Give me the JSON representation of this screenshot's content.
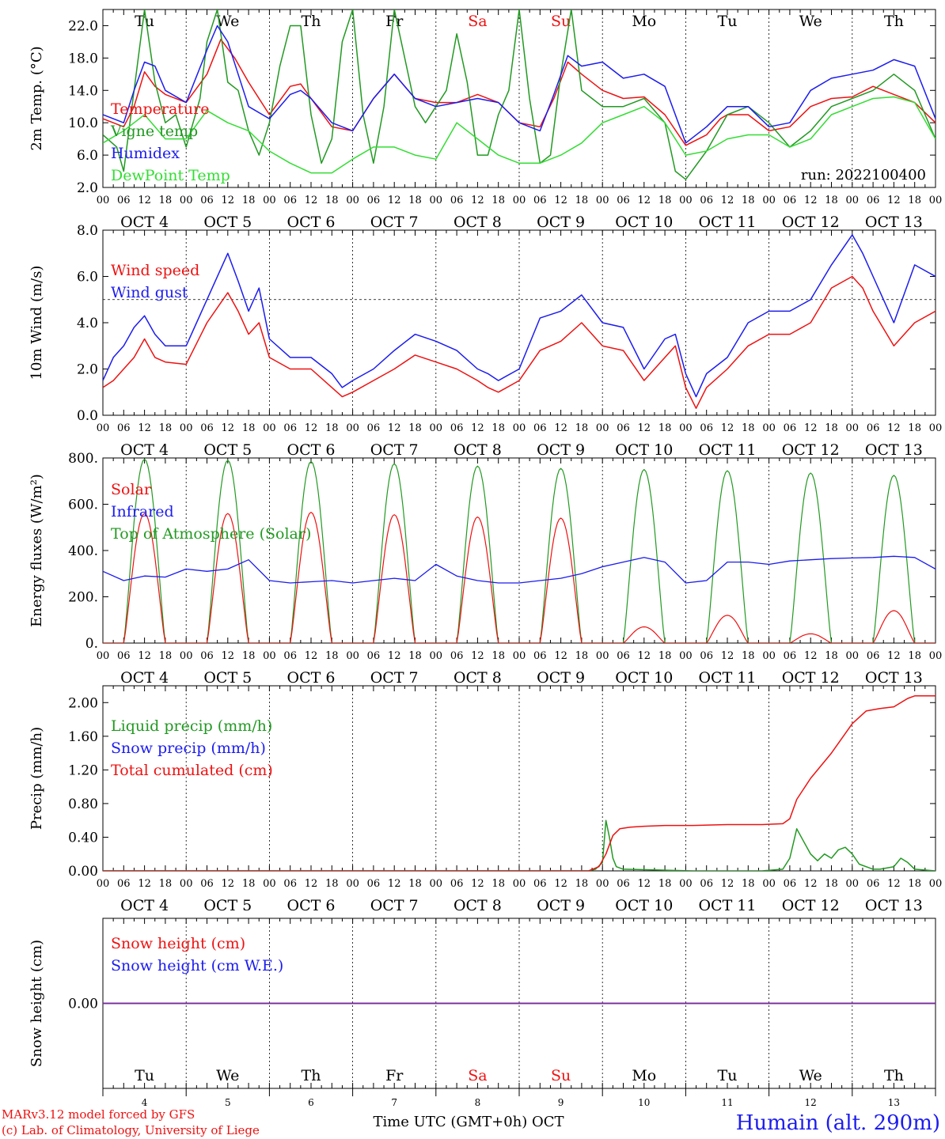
{
  "footer": {
    "credit_line1": "MARv3.12 model forced by GFS",
    "credit_line2": "(c) Lab. of Climatology, University of Liege",
    "xlabel": "Time UTC (GMT+0h) OCT",
    "station": "Humain (alt. 290m)"
  },
  "colors": {
    "red": "#ee1111",
    "green": "#229922",
    "blue": "#1c1cee",
    "lightgreen": "#33dd33",
    "purple": "#7a2a9a",
    "weekend": "#ee1111"
  },
  "hour_ticks": [
    "00",
    "06",
    "12",
    "18"
  ],
  "chart_data": [
    {
      "type": "line",
      "ylabel": "2m Temp. (°C)",
      "ylim": [
        2,
        24
      ],
      "yticks": [
        "2.0",
        "6.0",
        "10.0",
        "14.0",
        "18.0",
        "22.0"
      ],
      "ytick_values": [
        2,
        6,
        10,
        14,
        18,
        22
      ],
      "annotation": "run: 2022100400",
      "day_names": [
        "Tu",
        "We",
        "Th",
        "Fr",
        "Sa",
        "Su",
        "Mo",
        "Tu",
        "We",
        "Th"
      ],
      "date_labels": [
        "OCT  4",
        "OCT  5",
        "OCT  6",
        "OCT  7",
        "OCT  8",
        "OCT  9",
        "OCT 10",
        "OCT 11",
        "OCT 12",
        "OCT 13"
      ],
      "x_unit": "hours since 2022-10-04 00 UTC",
      "series": [
        {
          "name": "Temperature",
          "color": "#ee1111",
          "x": [
            0,
            6,
            9,
            12,
            15,
            18,
            24,
            30,
            34,
            38,
            42,
            48,
            54,
            57,
            60,
            66,
            72,
            78,
            84,
            90,
            96,
            102,
            108,
            114,
            120,
            126,
            130,
            134,
            138,
            144,
            150,
            156,
            162,
            168,
            174,
            178,
            180,
            186,
            192,
            198,
            204,
            210,
            216,
            222,
            228,
            234,
            240
          ],
          "y": [
            10.5,
            9.5,
            12,
            16.3,
            14.5,
            13.5,
            12.5,
            16,
            20.3,
            18,
            15,
            11,
            14.5,
            14.8,
            13,
            9.5,
            9,
            13,
            16,
            13,
            12.5,
            12.5,
            13.5,
            12.5,
            10,
            9.5,
            13,
            17.5,
            16,
            14,
            13,
            13.2,
            11,
            7.2,
            8.5,
            10.5,
            11,
            11,
            9,
            9.5,
            12,
            13,
            13.2,
            14.5,
            13.5,
            12.5,
            10
          ]
        },
        {
          "name": "Vigne temp",
          "color": "#229922",
          "x": [
            0,
            4,
            6,
            9,
            12,
            15,
            18,
            21,
            24,
            28,
            30,
            33,
            36,
            39,
            42,
            45,
            48,
            51,
            54,
            57,
            60,
            63,
            66,
            69,
            72,
            75,
            78,
            81,
            84,
            87,
            90,
            93,
            96,
            99,
            102,
            105,
            108,
            111,
            114,
            117,
            120,
            123,
            126,
            129,
            132,
            135,
            138,
            141,
            144,
            150,
            156,
            162,
            165,
            168,
            174,
            180,
            186,
            192,
            198,
            204,
            210,
            216,
            222,
            228,
            234,
            240
          ],
          "y": [
            8.5,
            7,
            4,
            14,
            24,
            15,
            10,
            11,
            7,
            13,
            20,
            24,
            15,
            14,
            9,
            6,
            10,
            17,
            22,
            22,
            11,
            5,
            8,
            20,
            24,
            11,
            5,
            12,
            24,
            18,
            12,
            10,
            12,
            14,
            21,
            15,
            6,
            6,
            11,
            14,
            24,
            13,
            5,
            6,
            16,
            24,
            14,
            13,
            12,
            12,
            13,
            10,
            4,
            3,
            6.5,
            11,
            12,
            10,
            7,
            9,
            12,
            13,
            14,
            16,
            14,
            8
          ]
        },
        {
          "name": "Humidex",
          "color": "#1c1cee",
          "x": [
            0,
            6,
            9,
            12,
            15,
            18,
            24,
            30,
            33,
            36,
            39,
            42,
            48,
            54,
            57,
            60,
            66,
            72,
            78,
            84,
            90,
            96,
            102,
            108,
            114,
            120,
            126,
            130,
            134,
            138,
            144,
            150,
            156,
            162,
            168,
            174,
            180,
            186,
            192,
            198,
            204,
            210,
            216,
            222,
            228,
            234,
            240
          ],
          "y": [
            11,
            10,
            14,
            17.5,
            17,
            14,
            12.5,
            19,
            22,
            20,
            16,
            12,
            10.5,
            13.5,
            14,
            13,
            10,
            9,
            13,
            16,
            13,
            12,
            12.5,
            13,
            12.5,
            10,
            9,
            13.5,
            18.3,
            17,
            17.5,
            15.5,
            16,
            14.5,
            7.5,
            9.5,
            12,
            12,
            9.5,
            10,
            14,
            15.5,
            16,
            16.5,
            17.8,
            17,
            10.5
          ]
        },
        {
          "name": "DewPoint Temp",
          "color": "#33dd33",
          "x": [
            0,
            6,
            9,
            12,
            15,
            18,
            24,
            30,
            36,
            42,
            48,
            54,
            60,
            66,
            72,
            78,
            84,
            90,
            96,
            102,
            108,
            114,
            120,
            126,
            132,
            138,
            144,
            150,
            156,
            162,
            168,
            174,
            180,
            186,
            192,
            198,
            204,
            210,
            216,
            222,
            228,
            234,
            240
          ],
          "y": [
            7.5,
            9,
            10,
            11,
            9.5,
            8,
            8,
            11.5,
            10,
            9,
            6.5,
            5,
            3.8,
            3.8,
            5.5,
            7,
            7,
            6,
            5.5,
            10,
            8,
            6,
            5,
            5,
            6,
            7.5,
            10,
            11,
            12,
            10,
            6,
            6.5,
            8,
            8.5,
            8.5,
            7,
            8,
            11,
            12,
            13,
            13.2,
            12.5,
            8
          ]
        }
      ],
      "legend": [
        "Temperature",
        "Vigne temp",
        "Humidex",
        "DewPoint Temp"
      ]
    },
    {
      "type": "line",
      "ylabel": "10m Wind (m/s)",
      "ylim": [
        0,
        8
      ],
      "yticks": [
        "0.0",
        "2.0",
        "4.0",
        "6.0",
        "8.0"
      ],
      "ytick_values": [
        0,
        2,
        4,
        6,
        8
      ],
      "reference_line": 5,
      "date_labels": [
        "OCT  4",
        "OCT  5",
        "OCT  6",
        "OCT  7",
        "OCT  8",
        "OCT  9",
        "OCT 10",
        "OCT 11",
        "OCT 12",
        "OCT 13"
      ],
      "series": [
        {
          "name": "Wind speed",
          "color": "#ee1111",
          "x": [
            0,
            3,
            6,
            9,
            12,
            15,
            18,
            24,
            30,
            36,
            39,
            42,
            45,
            48,
            54,
            60,
            66,
            69,
            72,
            78,
            84,
            90,
            96,
            102,
            108,
            111,
            114,
            120,
            126,
            132,
            138,
            144,
            150,
            156,
            162,
            165,
            168,
            171,
            174,
            180,
            186,
            192,
            198,
            204,
            210,
            216,
            219,
            222,
            228,
            234,
            240
          ],
          "y": [
            1.2,
            1.5,
            2,
            2.5,
            3.3,
            2.5,
            2.3,
            2.2,
            4,
            5.3,
            4.5,
            3.5,
            4,
            2.5,
            2,
            2,
            1.2,
            0.8,
            1,
            1.5,
            2,
            2.6,
            2.3,
            2,
            1.5,
            1.2,
            1,
            1.5,
            2.8,
            3.2,
            4,
            3,
            2.8,
            1.5,
            2.5,
            3,
            1.2,
            0.3,
            1.2,
            2,
            3,
            3.5,
            3.5,
            4,
            5.5,
            6,
            5.5,
            4.5,
            3,
            4,
            4.5
          ]
        },
        {
          "name": "Wind gust",
          "color": "#1c1cee",
          "x": [
            0,
            3,
            6,
            9,
            12,
            15,
            18,
            24,
            30,
            36,
            39,
            42,
            45,
            48,
            54,
            60,
            66,
            69,
            72,
            78,
            84,
            90,
            96,
            102,
            108,
            111,
            114,
            120,
            126,
            132,
            138,
            144,
            150,
            156,
            162,
            165,
            168,
            171,
            174,
            180,
            186,
            192,
            198,
            204,
            210,
            216,
            219,
            222,
            228,
            234,
            240
          ],
          "y": [
            1.5,
            2.5,
            3,
            3.8,
            4.3,
            3.5,
            3,
            3,
            5,
            7,
            5.8,
            4.5,
            5.5,
            3.3,
            2.5,
            2.5,
            1.8,
            1.2,
            1.5,
            2,
            2.8,
            3.5,
            3.2,
            2.8,
            2,
            1.8,
            1.5,
            2,
            4.2,
            4.5,
            5.2,
            4,
            3.8,
            2,
            3.3,
            3.5,
            1.8,
            0.8,
            1.8,
            2.5,
            4,
            4.5,
            4.5,
            5,
            6.5,
            7.8,
            7,
            6,
            4,
            6.5,
            6
          ]
        }
      ],
      "legend": [
        "Wind speed",
        "Wind gust"
      ]
    },
    {
      "type": "line",
      "ylabel": "Energy fluxes (W/m²)",
      "ylim": [
        0,
        800
      ],
      "yticks": [
        "0.",
        "200.",
        "400.",
        "600.",
        "800."
      ],
      "ytick_values": [
        0,
        200,
        400,
        600,
        800
      ],
      "date_labels": [
        "OCT  4",
        "OCT  5",
        "OCT  6",
        "OCT  7",
        "OCT  8",
        "OCT  9",
        "OCT 10",
        "OCT 11",
        "OCT 12",
        "OCT 13"
      ],
      "solar_day_peaks": [
        560,
        560,
        565,
        555,
        545,
        540,
        70,
        120,
        40,
        140
      ],
      "toa_day_peaks": [
        795,
        790,
        785,
        775,
        765,
        755,
        750,
        745,
        735,
        725
      ],
      "series": [
        {
          "name": "Solar",
          "color": "#ee1111"
        },
        {
          "name": "Infrared",
          "color": "#1c1cee",
          "x": [
            0,
            6,
            12,
            18,
            24,
            30,
            36,
            42,
            48,
            54,
            60,
            66,
            72,
            78,
            84,
            90,
            96,
            102,
            108,
            114,
            120,
            126,
            132,
            138,
            144,
            150,
            156,
            162,
            168,
            174,
            180,
            186,
            192,
            198,
            204,
            210,
            216,
            222,
            228,
            234,
            240
          ],
          "y": [
            310,
            270,
            290,
            285,
            320,
            310,
            320,
            360,
            270,
            260,
            265,
            270,
            260,
            270,
            280,
            270,
            340,
            290,
            270,
            260,
            260,
            270,
            280,
            300,
            330,
            350,
            370,
            350,
            260,
            270,
            350,
            350,
            340,
            355,
            360,
            365,
            368,
            370,
            375,
            370,
            320
          ]
        },
        {
          "name": "Top of Atmosphere (Solar)",
          "color": "#229922"
        }
      ],
      "legend": [
        "Solar",
        "Infrared",
        "Top of Atmosphere (Solar)"
      ]
    },
    {
      "type": "line",
      "ylabel": "Precip (mm/h)",
      "ylim": [
        0,
        2.2
      ],
      "yticks": [
        "0.00",
        "0.40",
        "0.80",
        "1.20",
        "1.60",
        "2.00"
      ],
      "ytick_values": [
        0,
        0.4,
        0.8,
        1.2,
        1.6,
        2.0
      ],
      "date_labels": [
        "OCT  4",
        "OCT  5",
        "OCT  6",
        "OCT  7",
        "OCT  8",
        "OCT  9",
        "OCT 10",
        "OCT 11",
        "OCT 12",
        "OCT 13"
      ],
      "series": [
        {
          "name": "Liquid precip (mm/h)",
          "color": "#229922",
          "x": [
            0,
            140,
            142,
            144,
            145,
            146,
            147,
            148,
            150,
            160,
            170,
            190,
            196,
            198,
            200,
            202,
            204,
            206,
            208,
            210,
            212,
            214,
            216,
            218,
            222,
            224,
            228,
            230,
            232,
            234,
            240
          ],
          "y": [
            0,
            0,
            0.02,
            0.1,
            0.6,
            0.4,
            0.15,
            0.05,
            0.02,
            0.01,
            0,
            0,
            0.02,
            0.15,
            0.5,
            0.35,
            0.2,
            0.12,
            0.2,
            0.15,
            0.25,
            0.28,
            0.2,
            0.08,
            0.02,
            0.02,
            0.05,
            0.15,
            0.1,
            0.02,
            0
          ]
        },
        {
          "name": "Snow precip (mm/h)",
          "color": "#1c1cee"
        },
        {
          "name": "Total cumulated (cm)",
          "color": "#ee1111",
          "x": [
            0,
            140,
            143,
            145,
            147,
            149,
            152,
            156,
            162,
            170,
            180,
            190,
            196,
            198,
            200,
            204,
            210,
            216,
            220,
            224,
            228,
            232,
            234,
            240
          ],
          "y": [
            0,
            0,
            0.05,
            0.2,
            0.42,
            0.5,
            0.52,
            0.53,
            0.54,
            0.54,
            0.55,
            0.55,
            0.56,
            0.62,
            0.85,
            1.1,
            1.4,
            1.75,
            1.9,
            1.93,
            1.95,
            2.05,
            2.08,
            2.08
          ]
        }
      ],
      "legend": [
        "Liquid precip (mm/h)",
        "Snow precip (mm/h)",
        "Total cumulated (cm)"
      ]
    },
    {
      "type": "line",
      "ylabel": "Snow height (cm)",
      "ylim": [
        -1,
        1
      ],
      "yticks": [
        "0.00"
      ],
      "ytick_values": [
        0
      ],
      "day_names": [
        "Tu",
        "We",
        "Th",
        "Fr",
        "Sa",
        "Su",
        "Mo",
        "Tu",
        "We",
        "Th"
      ],
      "day_numbers": [
        "4",
        "5",
        "6",
        "7",
        "8",
        "9",
        "10",
        "11",
        "12",
        "13"
      ],
      "series": [
        {
          "name": "Snow height (cm)",
          "color": "#ee1111",
          "x": [
            0,
            240
          ],
          "y": [
            0,
            0
          ]
        },
        {
          "name": "Snow height (cm W.E.)",
          "color": "#1c1cee",
          "x": [
            0,
            240
          ],
          "y": [
            0,
            0
          ]
        }
      ],
      "legend": [
        "Snow height (cm)",
        "Snow height (cm W.E.)"
      ]
    }
  ]
}
